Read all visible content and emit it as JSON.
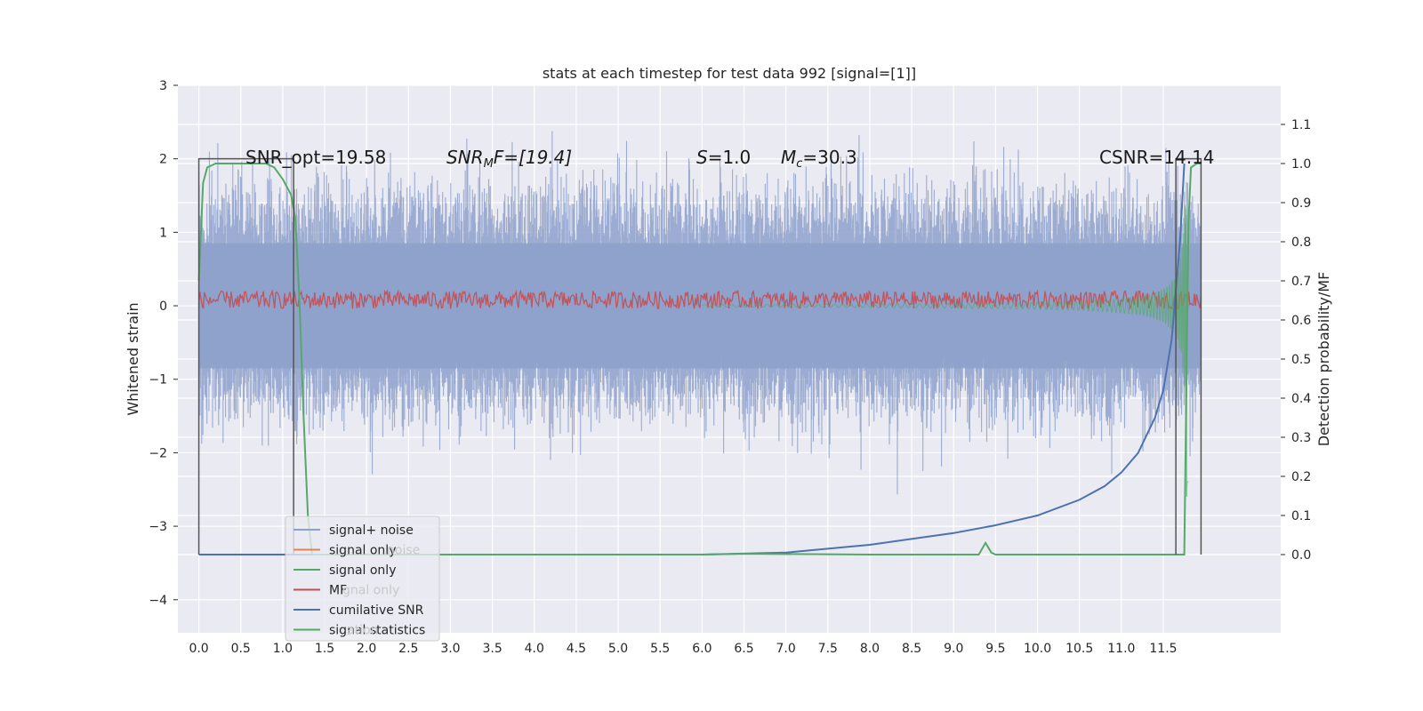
{
  "chart_data": {
    "type": "line",
    "title": "stats at each timestep for test data 992 [signal=[1]]",
    "xlabel": "",
    "ylabel_left": "Whitened strain",
    "ylabel_right": "Detection probability/MF",
    "xlim": [
      -0.25,
      12.9
    ],
    "ylim_left": [
      -4.45,
      3.0
    ],
    "ylim_right": [
      -0.2,
      1.2
    ],
    "grid": true,
    "x_ticks": [
      "0.0",
      "0.5",
      "1.0",
      "1.5",
      "2.0",
      "2.5",
      "3.0",
      "3.5",
      "4.0",
      "4.5",
      "5.0",
      "5.5",
      "6.0",
      "6.5",
      "7.0",
      "7.5",
      "8.0",
      "8.5",
      "9.0",
      "9.5",
      "10.0",
      "10.5",
      "11.0",
      "11.5"
    ],
    "y_ticks_left": [
      "3",
      "2",
      "1",
      "0",
      "−1",
      "−2",
      "−3",
      "−4"
    ],
    "y_ticks_right": [
      "1.1",
      "1.0",
      "0.9",
      "0.8",
      "0.7",
      "0.6",
      "0.5",
      "0.4",
      "0.3",
      "0.2",
      "0.1",
      "0.0"
    ],
    "annotations": {
      "snr_opt": "SNR_opt=19.58",
      "snr_mf_base": "SNR",
      "snr_mf_sub": "M",
      "snr_mf_rest": "F=[19.4]",
      "s_var": "S",
      "s_rest": "=1.0",
      "mc_var": "M",
      "mc_sub": "c",
      "mc_rest": "=30.3",
      "csnr": "CSNR=14.14"
    },
    "legend_placement": "lower-left",
    "legend": [
      {
        "label": "signal+ noise",
        "color": "#8da0cb"
      },
      {
        "label": "signal only",
        "color": "#dd8452"
      },
      {
        "label": "signal only",
        "color": "#55a868"
      },
      {
        "label": "MF",
        "color": "#c44e52"
      },
      {
        "label": "cumilative SNR",
        "color": "#4c72b0"
      },
      {
        "label": "signal statistics",
        "color": "#55a868"
      }
    ],
    "legend_ghost": [
      "noise",
      "gnal only",
      "ation"
    ],
    "series": [
      {
        "name": "signal+ noise",
        "axis": "left",
        "color": "#8da0cb",
        "kind": "noise",
        "x_range": [
          0.0,
          11.95
        ],
        "spread": 1.0
      },
      {
        "name": "MF",
        "axis": "left",
        "color": "#c44e52",
        "kind": "noise-band",
        "x_range": [
          0.0,
          11.95
        ],
        "center": 0.08,
        "amplitude": 0.12
      },
      {
        "name": "signal only",
        "axis": "left",
        "color": "#55a868",
        "kind": "chirp",
        "x_range": [
          6.0,
          11.8
        ],
        "peak_amplitude": 2.6
      },
      {
        "name": "cumilative SNR",
        "axis": "right",
        "color": "#4c72b0",
        "x": [
          0.0,
          6.0,
          7.0,
          8.0,
          8.5,
          9.0,
          9.5,
          10.0,
          10.5,
          10.8,
          11.0,
          11.2,
          11.4,
          11.5,
          11.6,
          11.7,
          11.75
        ],
        "y": [
          0.0,
          0.0,
          0.005,
          0.025,
          0.04,
          0.055,
          0.075,
          0.1,
          0.14,
          0.175,
          0.21,
          0.26,
          0.35,
          0.42,
          0.55,
          0.8,
          1.0
        ]
      },
      {
        "name": "signal statistics",
        "axis": "right",
        "color": "#55a868",
        "x": [
          0.0,
          0.05,
          0.1,
          0.2,
          0.8,
          0.9,
          1.0,
          1.1,
          1.15,
          1.2,
          1.25,
          1.3,
          1.35,
          1.4,
          1.45,
          2.0,
          6.0,
          6.5,
          8.0,
          9.3,
          9.38,
          9.45,
          9.5,
          10.0,
          11.0,
          11.75,
          11.8,
          11.83,
          11.9,
          11.95
        ],
        "y": [
          0.7,
          0.95,
          0.99,
          1.0,
          1.0,
          0.99,
          0.96,
          0.92,
          0.86,
          0.65,
          0.35,
          0.1,
          0.0,
          0.0,
          0.0,
          0.0,
          0.0,
          0.002,
          0.0,
          0.0,
          0.03,
          0.005,
          0.0,
          0.0,
          0.0,
          0.0,
          0.85,
          0.99,
          1.0,
          1.0
        ]
      }
    ],
    "window_boxes": [
      {
        "x0": 0.0,
        "x1": 1.13,
        "y_top": 2.0
      },
      {
        "x0": 11.65,
        "x1": 11.95,
        "y_top": 2.0
      }
    ]
  }
}
